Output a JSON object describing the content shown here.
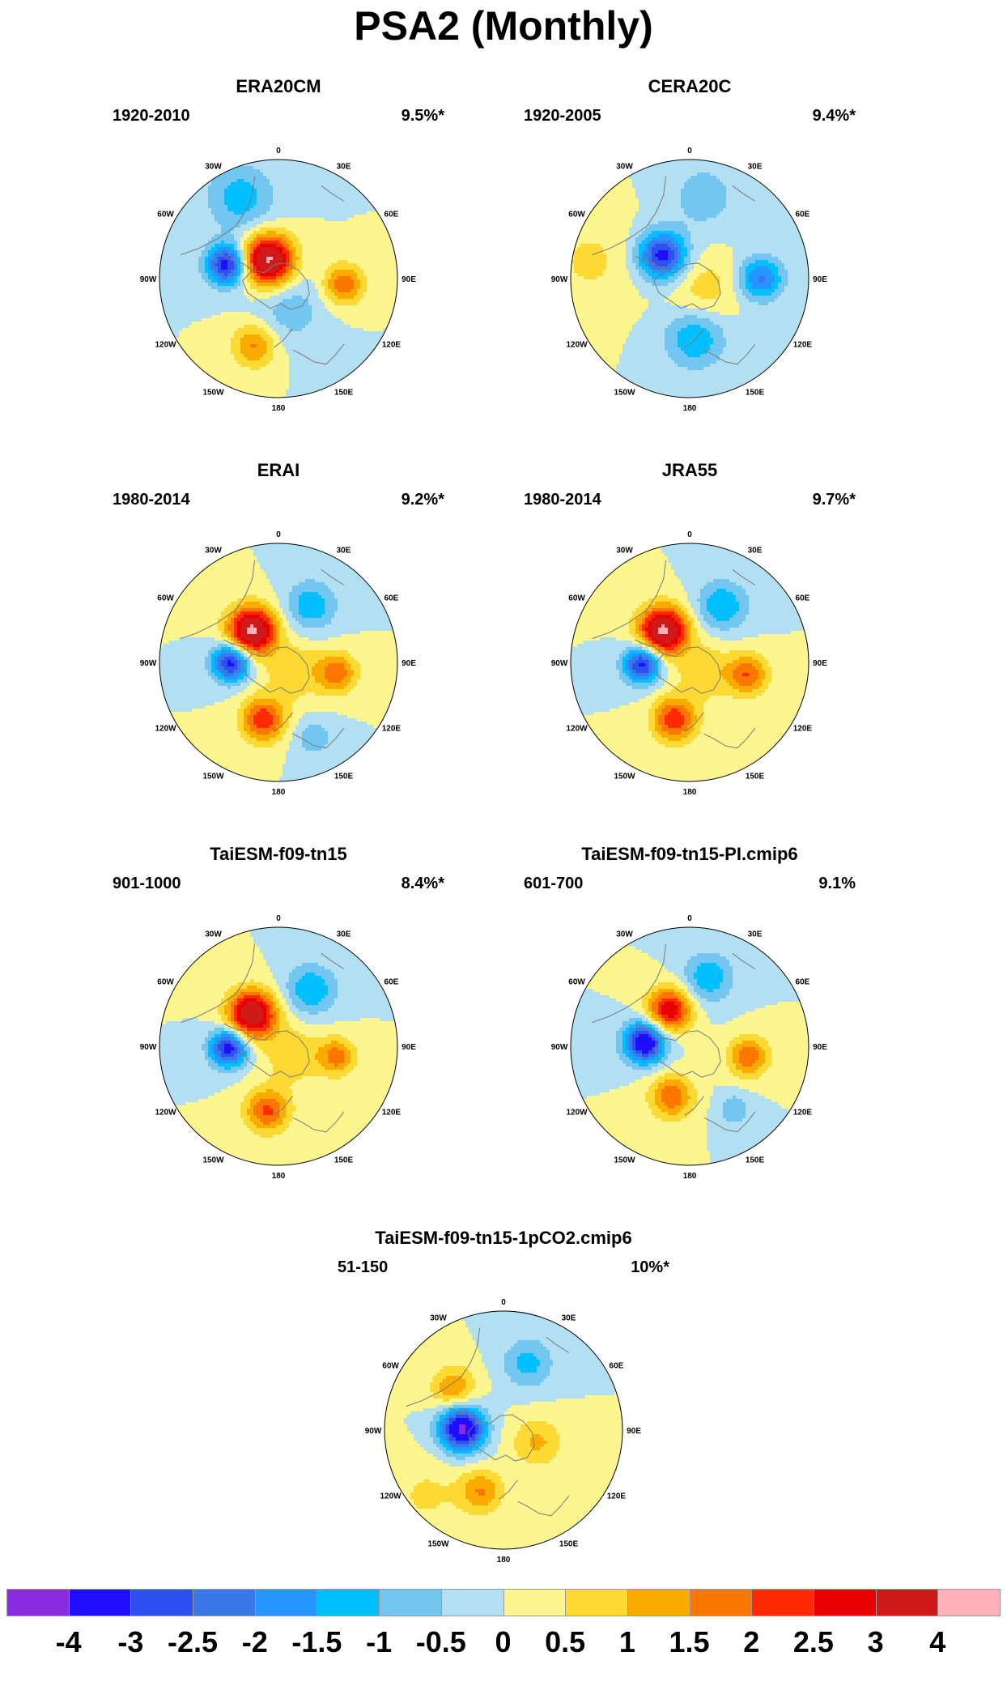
{
  "figure": {
    "title": "PSA2 (Monthly)"
  },
  "map_labels": {
    "top": "0",
    "bottom": "180",
    "left": [
      "30W",
      "60W",
      "90W",
      "120W",
      "150W"
    ],
    "right": [
      "30E",
      "60E",
      "90E",
      "120E",
      "150E"
    ]
  },
  "panels": [
    {
      "title": "ERA20CM",
      "period": "1920-2010",
      "variance": "9.5%*",
      "blobs": [
        {
          "lon": -150,
          "r": 0.18,
          "amp": 4.2,
          "size": 0.15
        },
        {
          "lon": -105,
          "r": 0.45,
          "amp": -3.4,
          "size": 0.12
        },
        {
          "lon": -20,
          "r": 0.6,
          "amp": 1.6,
          "size": 0.13
        },
        {
          "lon": 85,
          "r": 0.55,
          "amp": 1.9,
          "size": 0.12
        },
        {
          "lon": -155,
          "r": 0.75,
          "amp": -1.3,
          "size": 0.2
        },
        {
          "lon": 20,
          "r": 0.28,
          "amp": -0.8,
          "size": 0.2
        }
      ]
    },
    {
      "title": "CERA20C",
      "period": "1920-2005",
      "variance": "9.4%*",
      "blobs": [
        {
          "lon": -130,
          "r": 0.3,
          "amp": -3.3,
          "size": 0.14
        },
        {
          "lon": 90,
          "r": 0.6,
          "amp": -2.1,
          "size": 0.13
        },
        {
          "lon": 5,
          "r": 0.5,
          "amp": -1.5,
          "size": 0.18
        },
        {
          "lon": 50,
          "r": 0.15,
          "amp": 0.8,
          "size": 0.2
        },
        {
          "lon": -100,
          "r": 0.85,
          "amp": 0.6,
          "size": 0.25
        },
        {
          "lon": 170,
          "r": 0.7,
          "amp": -0.8,
          "size": 0.2
        }
      ]
    },
    {
      "title": "ERAI",
      "period": "1980-2014",
      "variance": "9.2%*",
      "blobs": [
        {
          "lon": -140,
          "r": 0.35,
          "amp": 4.2,
          "size": 0.14
        },
        {
          "lon": -90,
          "r": 0.4,
          "amp": -3.4,
          "size": 0.11
        },
        {
          "lon": -15,
          "r": 0.5,
          "amp": 2.4,
          "size": 0.13
        },
        {
          "lon": 80,
          "r": 0.5,
          "amp": 1.8,
          "size": 0.12
        },
        {
          "lon": 150,
          "r": 0.55,
          "amp": -1.4,
          "size": 0.15
        },
        {
          "lon": 25,
          "r": 0.7,
          "amp": -0.8,
          "size": 0.12
        },
        {
          "lon": 60,
          "r": 0.15,
          "amp": 0.9,
          "size": 0.18
        }
      ]
    },
    {
      "title": "JRA55",
      "period": "1980-2014",
      "variance": "9.7%*",
      "blobs": [
        {
          "lon": -140,
          "r": 0.35,
          "amp": 4.2,
          "size": 0.14
        },
        {
          "lon": -88,
          "r": 0.4,
          "amp": -3.3,
          "size": 0.11
        },
        {
          "lon": -15,
          "r": 0.5,
          "amp": 2.4,
          "size": 0.13
        },
        {
          "lon": 78,
          "r": 0.5,
          "amp": 1.9,
          "size": 0.12
        },
        {
          "lon": 150,
          "r": 0.55,
          "amp": -1.5,
          "size": 0.15
        },
        {
          "lon": 60,
          "r": 0.15,
          "amp": 0.9,
          "size": 0.18
        }
      ]
    },
    {
      "title": "TaiESM-f09-tn15",
      "period": "901-1000",
      "variance": "8.4%*",
      "blobs": [
        {
          "lon": -140,
          "r": 0.35,
          "amp": 3.9,
          "size": 0.14
        },
        {
          "lon": -88,
          "r": 0.42,
          "amp": -3.4,
          "size": 0.11
        },
        {
          "lon": -10,
          "r": 0.55,
          "amp": 2.1,
          "size": 0.13
        },
        {
          "lon": 80,
          "r": 0.5,
          "amp": 1.7,
          "size": 0.11
        },
        {
          "lon": 150,
          "r": 0.55,
          "amp": -1.5,
          "size": 0.15
        },
        {
          "lon": 60,
          "r": 0.15,
          "amp": 0.9,
          "size": 0.18
        }
      ]
    },
    {
      "title": "TaiESM-f09-tn15-PI.cmip6",
      "period": "601-700",
      "variance": "9.1%",
      "blobs": [
        {
          "lon": -95,
          "r": 0.38,
          "amp": -3.9,
          "size": 0.12
        },
        {
          "lon": -150,
          "r": 0.35,
          "amp": 3.0,
          "size": 0.13
        },
        {
          "lon": -20,
          "r": 0.45,
          "amp": 1.9,
          "size": 0.13
        },
        {
          "lon": 80,
          "r": 0.5,
          "amp": 1.9,
          "size": 0.12
        },
        {
          "lon": 165,
          "r": 0.6,
          "amp": -1.4,
          "size": 0.15
        },
        {
          "lon": 35,
          "r": 0.65,
          "amp": -0.9,
          "size": 0.1
        }
      ]
    },
    {
      "title": "TaiESM-f09-tn15-1pCO2.cmip6",
      "period": "51-150",
      "variance": "10%*",
      "blobs": [
        {
          "lon": -92,
          "r": 0.35,
          "amp": -4.2,
          "size": 0.13
        },
        {
          "lon": -130,
          "r": 0.55,
          "amp": 1.5,
          "size": 0.13
        },
        {
          "lon": -20,
          "r": 0.55,
          "amp": 1.5,
          "size": 0.13
        },
        {
          "lon": 70,
          "r": 0.3,
          "amp": 1.1,
          "size": 0.15
        },
        {
          "lon": 160,
          "r": 0.6,
          "amp": -1.2,
          "size": 0.15
        },
        {
          "lon": -50,
          "r": 0.85,
          "amp": 0.6,
          "size": 0.2
        }
      ]
    }
  ],
  "colorbar": {
    "labels": [
      "-4",
      "-3",
      "-2.5",
      "-2",
      "-1.5",
      "-1",
      "-0.5",
      "0",
      "0.5",
      "1",
      "1.5",
      "2",
      "2.5",
      "3",
      "4"
    ],
    "colors": [
      "#8a2be2",
      "#1e0dff",
      "#2f50f0",
      "#3a78ea",
      "#2596ff",
      "#00bfff",
      "#73c6f0",
      "#b3dff3",
      "#fdf58e",
      "#fdd934",
      "#fbaa00",
      "#fb7700",
      "#ff2b00",
      "#e80000",
      "#d01a1a",
      "#ffb0b8"
    ]
  }
}
